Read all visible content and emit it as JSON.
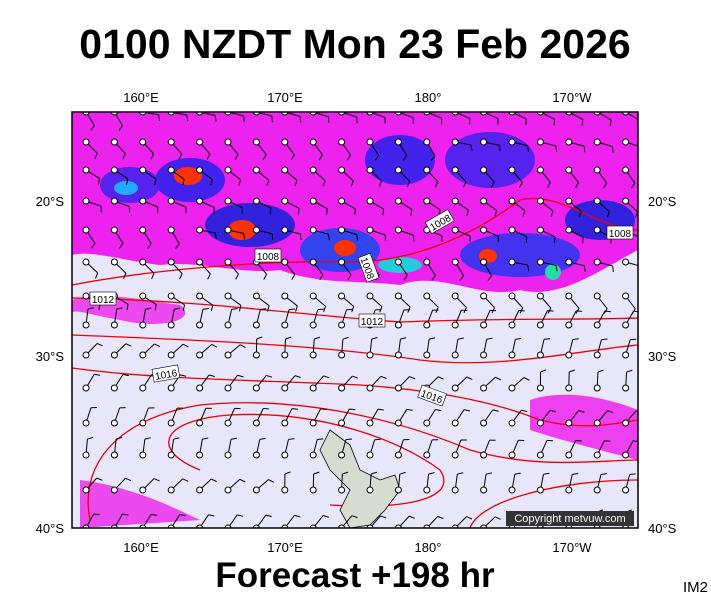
{
  "header": {
    "title": "0100 NZDT Mon 23 Feb 2026"
  },
  "map": {
    "lon_labels": [
      "160°E",
      "170°E",
      "180°",
      "170°W"
    ],
    "lat_labels": [
      "20°S",
      "30°S",
      "40°S"
    ],
    "isobar_labels": [
      "1008",
      "1008",
      "1008",
      "1008",
      "1012",
      "1012",
      "1016",
      "1016"
    ],
    "copyright": "Copyright metvuw.com"
  },
  "footer": {
    "forecast": "Forecast +198 hr",
    "code": "IM2"
  }
}
